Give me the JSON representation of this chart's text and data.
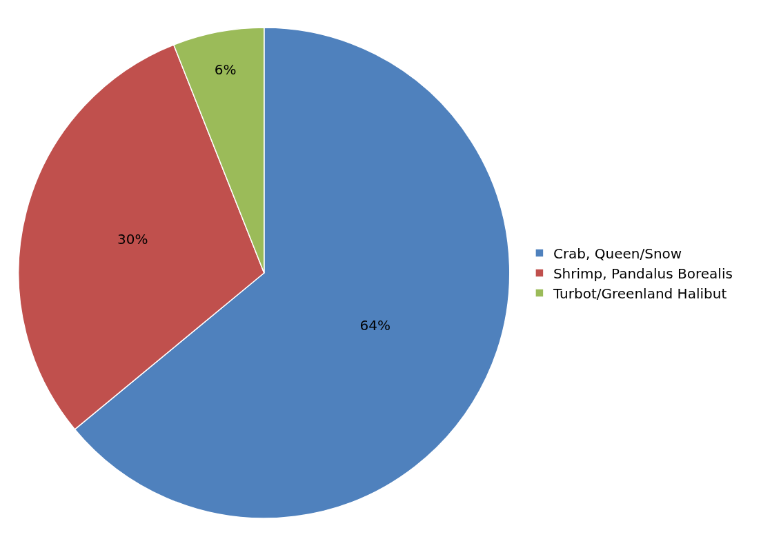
{
  "chart_data": {
    "type": "pie",
    "categories": [
      "Crab, Queen/Snow",
      "Shrimp, Pandalus Borealis",
      "Turbot/Greenland Halibut"
    ],
    "values": [
      64,
      30,
      6
    ],
    "colors": [
      "#4f81bd",
      "#c0504d",
      "#9bbb59"
    ],
    "value_labels": [
      "64%",
      "30%",
      "6%"
    ],
    "legend": "right"
  }
}
